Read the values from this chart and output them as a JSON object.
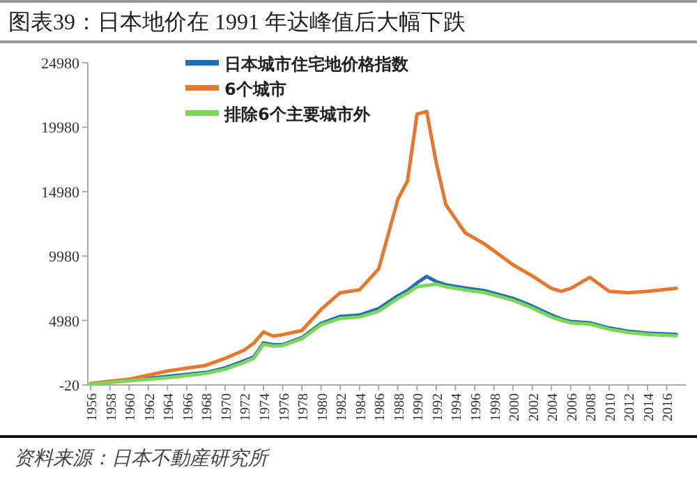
{
  "chart_data": {
    "type": "line",
    "title": "图表39：日本地价在 1991 年达峰值后大幅下跌",
    "x": [
      1956,
      1960,
      1964,
      1968,
      1970,
      1972,
      1973,
      1974,
      1975,
      1976,
      1978,
      1980,
      1982,
      1984,
      1986,
      1988,
      1989,
      1990,
      1991,
      1992,
      1993,
      1995,
      1997,
      1998,
      2000,
      2002,
      2004,
      2005,
      2006,
      2008,
      2010,
      2012,
      2014,
      2017
    ],
    "series": [
      {
        "name": "日本城市住宅地价格指数",
        "color": "#1f6fb4",
        "values": [
          50,
          350,
          650,
          950,
          1300,
          1850,
          2150,
          3250,
          3100,
          3100,
          3650,
          4750,
          5300,
          5400,
          5900,
          6900,
          7300,
          7900,
          8400,
          8000,
          7750,
          7500,
          7300,
          7100,
          6700,
          6100,
          5400,
          5100,
          4900,
          4800,
          4400,
          4150,
          4000,
          3900
        ]
      },
      {
        "name": "6个城市",
        "color": "#e8772e",
        "values": [
          100,
          420,
          1060,
          1500,
          2040,
          2690,
          3230,
          4090,
          3770,
          3880,
          4200,
          5840,
          7140,
          7360,
          8980,
          14390,
          15800,
          21000,
          21200,
          17200,
          13960,
          11790,
          10930,
          10390,
          9300,
          8440,
          7470,
          7250,
          7470,
          8330,
          7250,
          7140,
          7250,
          7470
        ]
      },
      {
        "name": "排除6个主要城市外",
        "color": "#7dd65a",
        "values": [
          30,
          310,
          540,
          870,
          1190,
          1730,
          2050,
          3140,
          3000,
          3030,
          3570,
          4650,
          5150,
          5250,
          5700,
          6700,
          7100,
          7600,
          7700,
          7800,
          7600,
          7350,
          7150,
          6950,
          6550,
          5950,
          5250,
          5000,
          4800,
          4700,
          4300,
          4050,
          3900,
          3800
        ]
      }
    ],
    "xlim": [
      1955.7,
      2018
    ],
    "xticks": [
      1956,
      1958,
      1960,
      1962,
      1964,
      1966,
      1968,
      1970,
      1972,
      1974,
      1976,
      1978,
      1980,
      1982,
      1984,
      1986,
      1988,
      1990,
      1992,
      1994,
      1996,
      1998,
      2000,
      2002,
      2004,
      2006,
      2008,
      2010,
      2012,
      2014,
      2016
    ],
    "ylim": [
      -20,
      24980
    ],
    "yticks": [
      -20,
      4980,
      9980,
      14980,
      19980,
      24980
    ],
    "legend": "top left",
    "grid": false,
    "marker": "none",
    "line_style": "solid",
    "annotations": [
      "资料来源：日本不動産研究所"
    ]
  }
}
